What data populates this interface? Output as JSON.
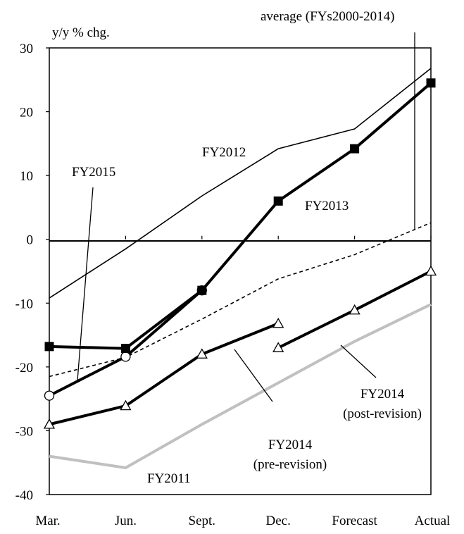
{
  "chart_data": {
    "type": "line",
    "ylabel": "y/y % chg.",
    "ylim": [
      -40,
      30
    ],
    "yticks": [
      30,
      20,
      10,
      0,
      -10,
      -20,
      -30,
      -40
    ],
    "categories": [
      "Mar.",
      "Jun.",
      "Sept.",
      "Dec.",
      "Forecast",
      "Actual"
    ],
    "grid": false,
    "series": [
      {
        "name": "FY2011",
        "color": "#c0c0c0",
        "style": "solid-thick",
        "marker": "none",
        "points": [
          [
            0,
            -34
          ],
          [
            1,
            -35.8
          ],
          [
            2,
            -29
          ],
          [
            3,
            -22.5
          ],
          [
            4,
            -16
          ],
          [
            5,
            -10.2
          ]
        ]
      },
      {
        "name": "FY2012",
        "color": "#000000",
        "style": "solid-thin",
        "marker": "none",
        "points": [
          [
            0,
            -9.2
          ],
          [
            1,
            -1.5
          ],
          [
            2,
            6.8
          ],
          [
            3,
            14.2
          ],
          [
            4,
            17.3
          ],
          [
            5,
            26.8
          ]
        ]
      },
      {
        "name": "FY2013",
        "color": "#000000",
        "style": "solid-thick",
        "marker": "square-filled",
        "points": [
          [
            0,
            -16.8
          ],
          [
            1,
            -17.1
          ],
          [
            2,
            -8
          ],
          [
            3,
            6
          ],
          [
            4,
            14.2
          ],
          [
            5,
            24.5
          ]
        ]
      },
      {
        "name": "FY2014 (pre-revision)",
        "color": "#000000",
        "style": "solid-thick",
        "marker": "triangle-open",
        "points": [
          [
            0,
            -29
          ],
          [
            1,
            -26.1
          ],
          [
            2,
            -18
          ],
          [
            3,
            -13.2
          ]
        ]
      },
      {
        "name": "FY2014 (post-revision)",
        "color": "#000000",
        "style": "solid-thick",
        "marker": "triangle-open",
        "points": [
          [
            3,
            -17
          ],
          [
            4,
            -11.1
          ],
          [
            5,
            -5
          ]
        ]
      },
      {
        "name": "FY2015",
        "color": "#000000",
        "style": "solid-thick",
        "marker": "circle-open",
        "points": [
          [
            0,
            -24.5
          ],
          [
            1,
            -18.4
          ],
          [
            2,
            -8
          ]
        ]
      },
      {
        "name": "average (FYs2000-2014)",
        "color": "#000000",
        "style": "dashed",
        "marker": "none",
        "points": [
          [
            0,
            -21.5
          ],
          [
            1,
            -18.5
          ],
          [
            2,
            -12.5
          ],
          [
            3,
            -6.2
          ],
          [
            4,
            -2.4
          ],
          [
            5,
            2.6
          ]
        ]
      }
    ],
    "annotations": [
      {
        "text": "average (FYs2000-2014)",
        "series": "average (FYs2000-2014)",
        "anchor": "top-right"
      },
      {
        "text": "FY2012",
        "series": "FY2012"
      },
      {
        "text": "FY2015",
        "series": "FY2015"
      },
      {
        "text": "FY2013",
        "series": "FY2013"
      },
      {
        "text": "FY2014",
        "text2": "(post-revision)",
        "series": "FY2014 (post-revision)"
      },
      {
        "text": "FY2014",
        "text2": "(pre-revision)",
        "series": "FY2014 (pre-revision)"
      },
      {
        "text": "FY2011",
        "series": "FY2011"
      }
    ]
  }
}
